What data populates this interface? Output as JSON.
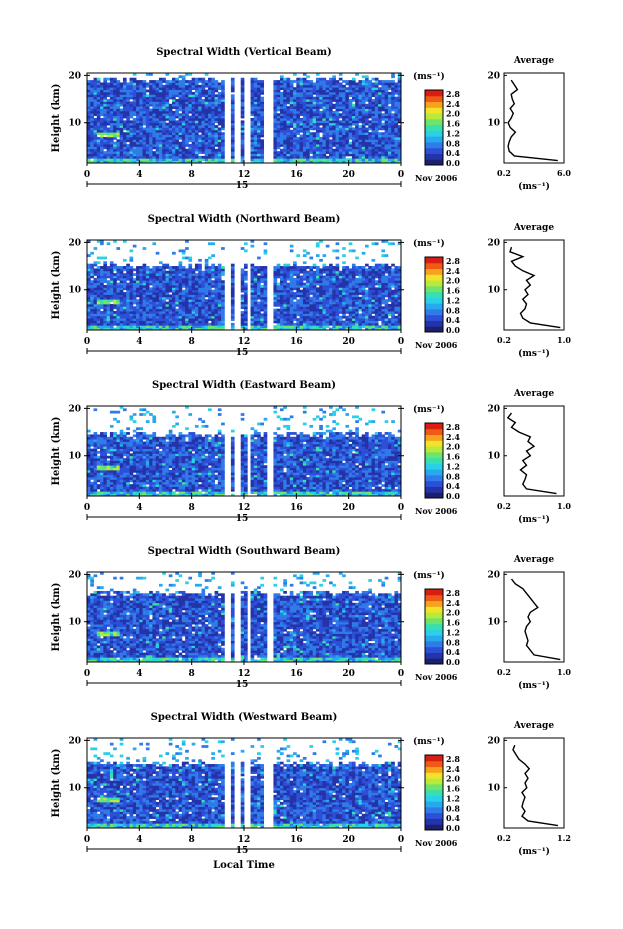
{
  "colors": {
    "scale": [
      "#1a1f6e",
      "#2433a8",
      "#2d4fd8",
      "#2f7be8",
      "#27a9ef",
      "#29d0e6",
      "#38e0b0",
      "#6fe36a",
      "#b8ea3c",
      "#f2e22a",
      "#f6a21c",
      "#ef5a14",
      "#d81e12"
    ],
    "no_data": "#ffffff",
    "background_mean": "#2f5fd6"
  },
  "common": {
    "time_ticks": [
      "0",
      "4",
      "8",
      "12",
      "16",
      "20",
      "0"
    ],
    "day_label": "15",
    "date_label": "Nov 2006",
    "colorbar_unit": "(ms⁻¹)",
    "colorbar_ticks": [
      "2.8",
      "2.4",
      "2.0",
      "1.6",
      "1.2",
      "0.8",
      "0.4",
      "0.0"
    ],
    "ylabel": "Height (km)",
    "height_ticks": [
      "20",
      "10"
    ],
    "avg_title": "Average",
    "avg_ylabel_ticks": [
      "20",
      "10"
    ],
    "avg_unit": "(ms⁻¹)",
    "x_axis_label": "Local Time"
  },
  "chart_data": [
    {
      "type": "heatmap",
      "title": "Spectral Width (Vertical Beam)",
      "xlabel": "",
      "ylabel": "Height (km)",
      "xlim": [
        0,
        24
      ],
      "ylim": [
        1.5,
        20.5
      ],
      "clim": [
        0.0,
        2.8
      ],
      "data_gaps_hours": [
        [
          10.5,
          11.0
        ],
        [
          11.3,
          11.7
        ],
        [
          12.0,
          12.4
        ],
        [
          13.5,
          14.2
        ]
      ],
      "top_height_km": 18.5,
      "profile": {
        "xlim_labels": [
          "0.2",
          "6.0"
        ],
        "xlim": [
          0.2,
          6.0
        ],
        "heights": [
          2,
          3,
          4,
          5,
          6,
          7,
          8,
          9,
          10,
          11,
          12,
          13,
          14,
          15,
          16,
          17,
          18,
          19
        ],
        "values": [
          5.4,
          1.2,
          0.7,
          0.6,
          0.7,
          0.9,
          1.3,
          0.8,
          0.6,
          0.9,
          1.1,
          0.8,
          1.2,
          1.0,
          0.9,
          1.5,
          1.2,
          0.9
        ]
      }
    },
    {
      "type": "heatmap",
      "title": "Spectral Width (Northward Beam)",
      "xlabel": "",
      "ylabel": "Height (km)",
      "xlim": [
        0,
        24
      ],
      "ylim": [
        1.5,
        20.5
      ],
      "clim": [
        0.0,
        2.8
      ],
      "data_gaps_hours": [
        [
          10.5,
          11.0
        ],
        [
          11.3,
          11.8
        ],
        [
          12.2,
          12.6
        ],
        [
          13.8,
          14.3
        ]
      ],
      "top_height_km": 14.5,
      "profile": {
        "xlim_labels": [
          "0.2",
          "1.0"
        ],
        "xlim": [
          0.2,
          1.0
        ],
        "heights": [
          2,
          3,
          4,
          5,
          6,
          7,
          8,
          9,
          10,
          11,
          12,
          13,
          14,
          15,
          16,
          17,
          18,
          19
        ],
        "values": [
          0.95,
          0.55,
          0.45,
          0.42,
          0.48,
          0.5,
          0.45,
          0.52,
          0.48,
          0.55,
          0.5,
          0.6,
          0.45,
          0.35,
          0.3,
          0.45,
          0.28,
          0.3
        ]
      }
    },
    {
      "type": "heatmap",
      "title": "Spectral Width (Eastward Beam)",
      "xlabel": "",
      "ylabel": "Height (km)",
      "xlim": [
        0,
        24
      ],
      "ylim": [
        1.5,
        20.5
      ],
      "clim": [
        0.0,
        2.8
      ],
      "data_gaps_hours": [
        [
          10.5,
          11.0
        ],
        [
          11.3,
          11.8
        ],
        [
          12.2,
          12.6
        ],
        [
          13.8,
          14.3
        ]
      ],
      "top_height_km": 14.0,
      "profile": {
        "xlim_labels": [
          "0.2",
          "1.0"
        ],
        "xlim": [
          0.2,
          1.0
        ],
        "heights": [
          2,
          3,
          4,
          5,
          6,
          7,
          8,
          9,
          10,
          11,
          12,
          13,
          14,
          15,
          16,
          17,
          18,
          19
        ],
        "values": [
          0.9,
          0.5,
          0.45,
          0.48,
          0.5,
          0.42,
          0.5,
          0.45,
          0.55,
          0.5,
          0.6,
          0.52,
          0.55,
          0.4,
          0.3,
          0.35,
          0.25,
          0.3
        ]
      }
    },
    {
      "type": "heatmap",
      "title": "Spectral Width (Southward Beam)",
      "xlabel": "",
      "ylabel": "Height (km)",
      "xlim": [
        0,
        24
      ],
      "ylim": [
        1.5,
        20.5
      ],
      "clim": [
        0.0,
        2.8
      ],
      "data_gaps_hours": [
        [
          10.5,
          11.0
        ],
        [
          11.3,
          11.8
        ],
        [
          12.2,
          12.6
        ],
        [
          13.8,
          14.3
        ]
      ],
      "top_height_km": 15.5,
      "profile": {
        "xlim_labels": [
          "0.2",
          "1.0"
        ],
        "xlim": [
          0.2,
          1.0
        ],
        "heights": [
          2,
          3,
          4,
          5,
          6,
          7,
          8,
          9,
          10,
          11,
          12,
          13,
          14,
          15,
          16,
          17,
          18,
          19
        ],
        "values": [
          0.95,
          0.6,
          0.55,
          0.5,
          0.52,
          0.5,
          0.48,
          0.5,
          0.55,
          0.52,
          0.55,
          0.65,
          0.6,
          0.55,
          0.5,
          0.45,
          0.35,
          0.3
        ]
      }
    },
    {
      "type": "heatmap",
      "title": "Spectral Width (Westward Beam)",
      "xlabel": "Local Time",
      "ylabel": "Height (km)",
      "xlim": [
        0,
        24
      ],
      "ylim": [
        1.5,
        20.5
      ],
      "clim": [
        0.0,
        2.8
      ],
      "data_gaps_hours": [
        [
          10.5,
          11.0
        ],
        [
          11.3,
          11.7
        ],
        [
          12.0,
          12.4
        ],
        [
          13.5,
          14.2
        ]
      ],
      "top_height_km": 14.5,
      "profile": {
        "xlim_labels": [
          "0.2",
          "1.2"
        ],
        "xlim": [
          0.2,
          1.2
        ],
        "heights": [
          2,
          3,
          4,
          5,
          6,
          7,
          8,
          9,
          10,
          11,
          12,
          13,
          14,
          15,
          16,
          17,
          18,
          19
        ],
        "values": [
          1.1,
          0.6,
          0.5,
          0.55,
          0.5,
          0.52,
          0.55,
          0.5,
          0.58,
          0.55,
          0.6,
          0.55,
          0.62,
          0.55,
          0.45,
          0.4,
          0.35,
          0.38
        ]
      }
    }
  ]
}
